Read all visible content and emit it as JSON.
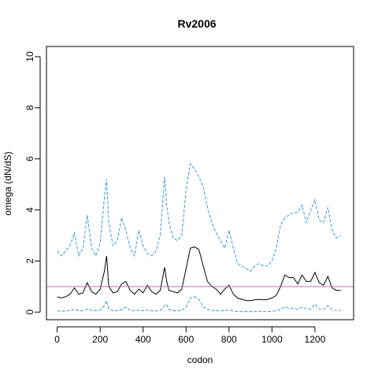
{
  "chart_data": {
    "type": "line",
    "title": "Rv2006",
    "xlabel": "codon",
    "ylabel": "omega (dN/dS)",
    "xlim": [
      -50,
      1380
    ],
    "ylim": [
      -0.3,
      10.4
    ],
    "x_ticks": [
      0,
      200,
      400,
      600,
      800,
      1000,
      1200
    ],
    "y_ticks": [
      0,
      2,
      4,
      6,
      8,
      10
    ],
    "reference_line": {
      "y": 1,
      "color": "#cc66cc"
    },
    "grid": false,
    "legend": "none",
    "colors": {
      "median": "#000000",
      "interval": "#3399dd"
    },
    "series": [
      {
        "style": "dashed",
        "color": "#3399dd",
        "x": [
          0,
          20,
          40,
          60,
          80,
          100,
          120,
          140,
          160,
          180,
          200,
          220,
          230,
          240,
          260,
          280,
          300,
          320,
          340,
          360,
          380,
          400,
          420,
          440,
          460,
          480,
          500,
          510,
          520,
          540,
          560,
          580,
          600,
          620,
          640,
          660,
          680,
          700,
          720,
          740,
          760,
          780,
          800,
          820,
          840,
          860,
          880,
          900,
          920,
          940,
          960,
          980,
          1000,
          1020,
          1040,
          1060,
          1080,
          1100,
          1120,
          1140,
          1160,
          1180,
          1200,
          1220,
          1240,
          1260,
          1280,
          1300,
          1320
        ],
        "values": [
          2.4,
          2.2,
          2.4,
          2.6,
          3.1,
          2.2,
          2.5,
          3.8,
          2.5,
          2.2,
          2.7,
          4.5,
          5.2,
          3.5,
          2.6,
          2.8,
          3.7,
          3.2,
          2.5,
          2.2,
          3.2,
          2.6,
          2.3,
          2.2,
          2.4,
          3.0,
          5.3,
          4.2,
          3.5,
          2.9,
          2.8,
          3.0,
          4.8,
          5.8,
          5.6,
          5.3,
          4.9,
          4.1,
          3.5,
          3.1,
          2.8,
          2.5,
          3.2,
          2.5,
          1.9,
          1.8,
          1.7,
          1.6,
          1.8,
          1.9,
          1.8,
          1.8,
          2.0,
          2.5,
          3.4,
          3.7,
          3.8,
          3.9,
          3.9,
          4.2,
          3.5,
          4.0,
          4.4,
          3.6,
          3.5,
          4.1,
          3.2,
          2.9,
          3.0
        ]
      },
      {
        "style": "solid",
        "color": "#000000",
        "x": [
          0,
          20,
          40,
          60,
          80,
          100,
          120,
          140,
          160,
          180,
          200,
          220,
          230,
          240,
          260,
          280,
          300,
          320,
          340,
          360,
          380,
          400,
          420,
          440,
          460,
          480,
          500,
          510,
          520,
          540,
          560,
          580,
          600,
          620,
          640,
          660,
          680,
          700,
          720,
          740,
          760,
          780,
          800,
          820,
          840,
          860,
          880,
          900,
          920,
          940,
          960,
          980,
          1000,
          1020,
          1040,
          1060,
          1080,
          1100,
          1120,
          1140,
          1160,
          1180,
          1200,
          1220,
          1240,
          1260,
          1280,
          1300,
          1320
        ],
        "values": [
          0.6,
          0.55,
          0.6,
          0.7,
          0.95,
          0.7,
          0.75,
          1.15,
          0.8,
          0.7,
          0.9,
          1.6,
          2.2,
          1.0,
          0.75,
          0.8,
          1.1,
          1.2,
          0.85,
          0.7,
          0.9,
          0.75,
          1.05,
          0.8,
          0.7,
          0.85,
          1.75,
          1.2,
          0.85,
          0.8,
          0.75,
          0.9,
          1.7,
          2.5,
          2.55,
          2.45,
          1.8,
          1.2,
          1.0,
          0.9,
          0.7,
          0.9,
          1.05,
          0.7,
          0.55,
          0.5,
          0.45,
          0.45,
          0.48,
          0.5,
          0.48,
          0.5,
          0.55,
          0.65,
          1.0,
          1.45,
          1.35,
          1.35,
          1.1,
          1.45,
          1.2,
          1.2,
          1.55,
          1.15,
          1.05,
          1.4,
          0.95,
          0.85,
          0.85
        ]
      },
      {
        "style": "dashed",
        "color": "#3399dd",
        "x": [
          0,
          20,
          40,
          60,
          80,
          100,
          120,
          140,
          160,
          180,
          200,
          220,
          230,
          240,
          260,
          280,
          300,
          320,
          340,
          360,
          380,
          400,
          420,
          440,
          460,
          480,
          500,
          510,
          520,
          540,
          560,
          580,
          600,
          620,
          640,
          660,
          680,
          700,
          720,
          740,
          760,
          780,
          800,
          820,
          840,
          860,
          880,
          900,
          920,
          940,
          960,
          980,
          1000,
          1020,
          1040,
          1060,
          1080,
          1100,
          1120,
          1140,
          1160,
          1180,
          1200,
          1220,
          1240,
          1260,
          1280,
          1300,
          1320
        ],
        "values": [
          0.05,
          0.03,
          0.04,
          0.06,
          0.1,
          0.05,
          0.05,
          0.12,
          0.06,
          0.05,
          0.08,
          0.25,
          0.45,
          0.12,
          0.05,
          0.06,
          0.1,
          0.2,
          0.06,
          0.05,
          0.08,
          0.05,
          0.08,
          0.05,
          0.04,
          0.06,
          0.25,
          0.3,
          0.1,
          0.05,
          0.05,
          0.06,
          0.2,
          0.55,
          0.6,
          0.5,
          0.2,
          0.1,
          0.06,
          0.05,
          0.04,
          0.06,
          0.08,
          0.04,
          0.02,
          0.02,
          0.02,
          0.02,
          0.02,
          0.02,
          0.02,
          0.02,
          0.03,
          0.05,
          0.1,
          0.2,
          0.15,
          0.15,
          0.1,
          0.2,
          0.12,
          0.12,
          0.3,
          0.12,
          0.1,
          0.25,
          0.08,
          0.06,
          0.06
        ]
      }
    ]
  }
}
